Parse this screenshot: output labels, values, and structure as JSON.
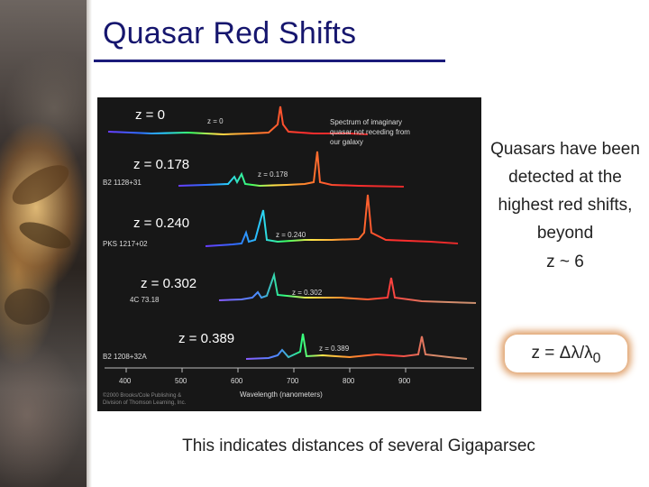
{
  "slide": {
    "title": "Quasar Red Shifts",
    "side_text": "Quasars have been detected at the highest red shifts, beyond",
    "z_approx": "z ~ 6",
    "formula": "z = Δλ/λ0",
    "bottom_text": "This indicates distances of several Gigaparsec"
  },
  "figure": {
    "overlay_labels": [
      "z = 0",
      "z = 0.178",
      "z = 0.240",
      "z = 0.302",
      "z = 0.389"
    ],
    "inner_z_labels": [
      "z = 0",
      "z = 0.178",
      "z = 0.240",
      "z = 0.302",
      "z = 0.389"
    ],
    "object_names": [
      "B2 1128+31",
      "PKS 1217+02",
      "4C 73.18",
      "B2 1208+32A"
    ],
    "caption": "Spectrum of imaginary quasar not receding from our galaxy",
    "xaxis_ticks": [
      "400",
      "500",
      "600",
      "700",
      "800",
      "900"
    ],
    "xaxis_label": "Wavelength (nanometers)",
    "copyright": "©2000 Brooks/Cole Publishing & Division of Thomson Learning, Inc."
  }
}
